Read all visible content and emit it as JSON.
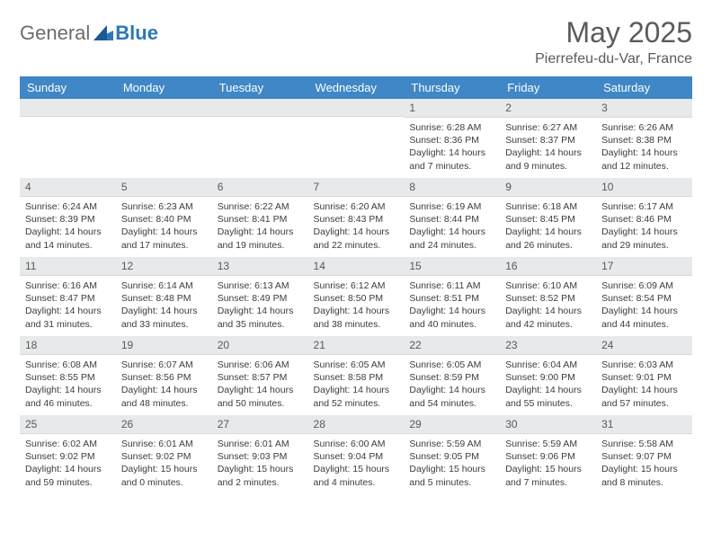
{
  "brand": {
    "text1": "General",
    "text2": "Blue"
  },
  "title": "May 2025",
  "location": "Pierrefeu-du-Var, France",
  "colors": {
    "header_bg": "#3f87c6",
    "header_text": "#ffffff",
    "daynum_bg": "#e7e9ea",
    "text": "#3c3c3c",
    "brand_gray": "#6b6b6b",
    "brand_blue": "#2f77b5"
  },
  "weekdays": [
    "Sunday",
    "Monday",
    "Tuesday",
    "Wednesday",
    "Thursday",
    "Friday",
    "Saturday"
  ],
  "weeks": [
    [
      {
        "n": "",
        "sunrise": "",
        "sunset": "",
        "daylight": ""
      },
      {
        "n": "",
        "sunrise": "",
        "sunset": "",
        "daylight": ""
      },
      {
        "n": "",
        "sunrise": "",
        "sunset": "",
        "daylight": ""
      },
      {
        "n": "",
        "sunrise": "",
        "sunset": "",
        "daylight": ""
      },
      {
        "n": "1",
        "sunrise": "Sunrise: 6:28 AM",
        "sunset": "Sunset: 8:36 PM",
        "daylight": "Daylight: 14 hours and 7 minutes."
      },
      {
        "n": "2",
        "sunrise": "Sunrise: 6:27 AM",
        "sunset": "Sunset: 8:37 PM",
        "daylight": "Daylight: 14 hours and 9 minutes."
      },
      {
        "n": "3",
        "sunrise": "Sunrise: 6:26 AM",
        "sunset": "Sunset: 8:38 PM",
        "daylight": "Daylight: 14 hours and 12 minutes."
      }
    ],
    [
      {
        "n": "4",
        "sunrise": "Sunrise: 6:24 AM",
        "sunset": "Sunset: 8:39 PM",
        "daylight": "Daylight: 14 hours and 14 minutes."
      },
      {
        "n": "5",
        "sunrise": "Sunrise: 6:23 AM",
        "sunset": "Sunset: 8:40 PM",
        "daylight": "Daylight: 14 hours and 17 minutes."
      },
      {
        "n": "6",
        "sunrise": "Sunrise: 6:22 AM",
        "sunset": "Sunset: 8:41 PM",
        "daylight": "Daylight: 14 hours and 19 minutes."
      },
      {
        "n": "7",
        "sunrise": "Sunrise: 6:20 AM",
        "sunset": "Sunset: 8:43 PM",
        "daylight": "Daylight: 14 hours and 22 minutes."
      },
      {
        "n": "8",
        "sunrise": "Sunrise: 6:19 AM",
        "sunset": "Sunset: 8:44 PM",
        "daylight": "Daylight: 14 hours and 24 minutes."
      },
      {
        "n": "9",
        "sunrise": "Sunrise: 6:18 AM",
        "sunset": "Sunset: 8:45 PM",
        "daylight": "Daylight: 14 hours and 26 minutes."
      },
      {
        "n": "10",
        "sunrise": "Sunrise: 6:17 AM",
        "sunset": "Sunset: 8:46 PM",
        "daylight": "Daylight: 14 hours and 29 minutes."
      }
    ],
    [
      {
        "n": "11",
        "sunrise": "Sunrise: 6:16 AM",
        "sunset": "Sunset: 8:47 PM",
        "daylight": "Daylight: 14 hours and 31 minutes."
      },
      {
        "n": "12",
        "sunrise": "Sunrise: 6:14 AM",
        "sunset": "Sunset: 8:48 PM",
        "daylight": "Daylight: 14 hours and 33 minutes."
      },
      {
        "n": "13",
        "sunrise": "Sunrise: 6:13 AM",
        "sunset": "Sunset: 8:49 PM",
        "daylight": "Daylight: 14 hours and 35 minutes."
      },
      {
        "n": "14",
        "sunrise": "Sunrise: 6:12 AM",
        "sunset": "Sunset: 8:50 PM",
        "daylight": "Daylight: 14 hours and 38 minutes."
      },
      {
        "n": "15",
        "sunrise": "Sunrise: 6:11 AM",
        "sunset": "Sunset: 8:51 PM",
        "daylight": "Daylight: 14 hours and 40 minutes."
      },
      {
        "n": "16",
        "sunrise": "Sunrise: 6:10 AM",
        "sunset": "Sunset: 8:52 PM",
        "daylight": "Daylight: 14 hours and 42 minutes."
      },
      {
        "n": "17",
        "sunrise": "Sunrise: 6:09 AM",
        "sunset": "Sunset: 8:54 PM",
        "daylight": "Daylight: 14 hours and 44 minutes."
      }
    ],
    [
      {
        "n": "18",
        "sunrise": "Sunrise: 6:08 AM",
        "sunset": "Sunset: 8:55 PM",
        "daylight": "Daylight: 14 hours and 46 minutes."
      },
      {
        "n": "19",
        "sunrise": "Sunrise: 6:07 AM",
        "sunset": "Sunset: 8:56 PM",
        "daylight": "Daylight: 14 hours and 48 minutes."
      },
      {
        "n": "20",
        "sunrise": "Sunrise: 6:06 AM",
        "sunset": "Sunset: 8:57 PM",
        "daylight": "Daylight: 14 hours and 50 minutes."
      },
      {
        "n": "21",
        "sunrise": "Sunrise: 6:05 AM",
        "sunset": "Sunset: 8:58 PM",
        "daylight": "Daylight: 14 hours and 52 minutes."
      },
      {
        "n": "22",
        "sunrise": "Sunrise: 6:05 AM",
        "sunset": "Sunset: 8:59 PM",
        "daylight": "Daylight: 14 hours and 54 minutes."
      },
      {
        "n": "23",
        "sunrise": "Sunrise: 6:04 AM",
        "sunset": "Sunset: 9:00 PM",
        "daylight": "Daylight: 14 hours and 55 minutes."
      },
      {
        "n": "24",
        "sunrise": "Sunrise: 6:03 AM",
        "sunset": "Sunset: 9:01 PM",
        "daylight": "Daylight: 14 hours and 57 minutes."
      }
    ],
    [
      {
        "n": "25",
        "sunrise": "Sunrise: 6:02 AM",
        "sunset": "Sunset: 9:02 PM",
        "daylight": "Daylight: 14 hours and 59 minutes."
      },
      {
        "n": "26",
        "sunrise": "Sunrise: 6:01 AM",
        "sunset": "Sunset: 9:02 PM",
        "daylight": "Daylight: 15 hours and 0 minutes."
      },
      {
        "n": "27",
        "sunrise": "Sunrise: 6:01 AM",
        "sunset": "Sunset: 9:03 PM",
        "daylight": "Daylight: 15 hours and 2 minutes."
      },
      {
        "n": "28",
        "sunrise": "Sunrise: 6:00 AM",
        "sunset": "Sunset: 9:04 PM",
        "daylight": "Daylight: 15 hours and 4 minutes."
      },
      {
        "n": "29",
        "sunrise": "Sunrise: 5:59 AM",
        "sunset": "Sunset: 9:05 PM",
        "daylight": "Daylight: 15 hours and 5 minutes."
      },
      {
        "n": "30",
        "sunrise": "Sunrise: 5:59 AM",
        "sunset": "Sunset: 9:06 PM",
        "daylight": "Daylight: 15 hours and 7 minutes."
      },
      {
        "n": "31",
        "sunrise": "Sunrise: 5:58 AM",
        "sunset": "Sunset: 9:07 PM",
        "daylight": "Daylight: 15 hours and 8 minutes."
      }
    ]
  ]
}
